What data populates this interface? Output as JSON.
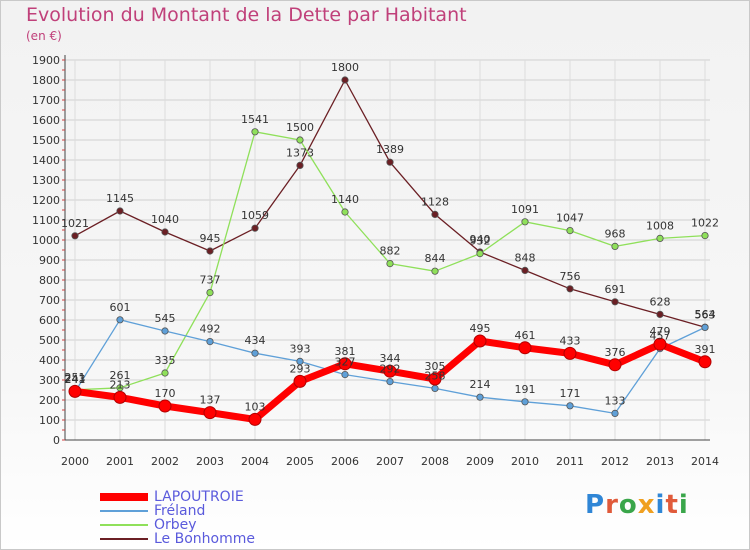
{
  "title": "Evolution du Montant de la Dette par Habitant",
  "subtitle": "(en €)",
  "logo_text": "Proxiti",
  "chart_data": {
    "type": "line",
    "title": "Evolution du Montant de la Dette par Habitant",
    "ylabel": "(en €)",
    "x": [
      "2000",
      "2001",
      "2002",
      "2003",
      "2004",
      "2005",
      "2006",
      "2007",
      "2008",
      "2009",
      "2010",
      "2011",
      "2012",
      "2013",
      "2014"
    ],
    "ylim": [
      0,
      1900
    ],
    "yticks": [
      0,
      100,
      200,
      300,
      400,
      500,
      600,
      700,
      800,
      900,
      1000,
      1100,
      1200,
      1300,
      1400,
      1500,
      1600,
      1700,
      1800,
      1900
    ],
    "grid": true,
    "legend_position": "bottom-left",
    "series": [
      {
        "name": "LAPOUTROIE",
        "color": "#ff0000",
        "values": [
          243,
          213,
          170,
          137,
          103,
          293,
          381,
          344,
          305,
          495,
          461,
          433,
          376,
          479,
          391
        ]
      },
      {
        "name": "Fréland",
        "color": "#5fa0d8",
        "values": [
          241,
          601,
          545,
          492,
          434,
          393,
          327,
          292,
          258,
          214,
          191,
          171,
          133,
          457,
          563
        ]
      },
      {
        "name": "Orbey",
        "color": "#8fe05a",
        "values": [
          251,
          261,
          335,
          737,
          1541,
          1500,
          1140,
          882,
          844,
          932,
          1091,
          1047,
          968,
          1008,
          1022
        ]
      },
      {
        "name": "Le Bonhomme",
        "color": "#6b1f24",
        "values": [
          1021,
          1145,
          1040,
          945,
          1059,
          1373,
          1800,
          1389,
          1128,
          940,
          848,
          756,
          691,
          628,
          564
        ]
      }
    ]
  }
}
